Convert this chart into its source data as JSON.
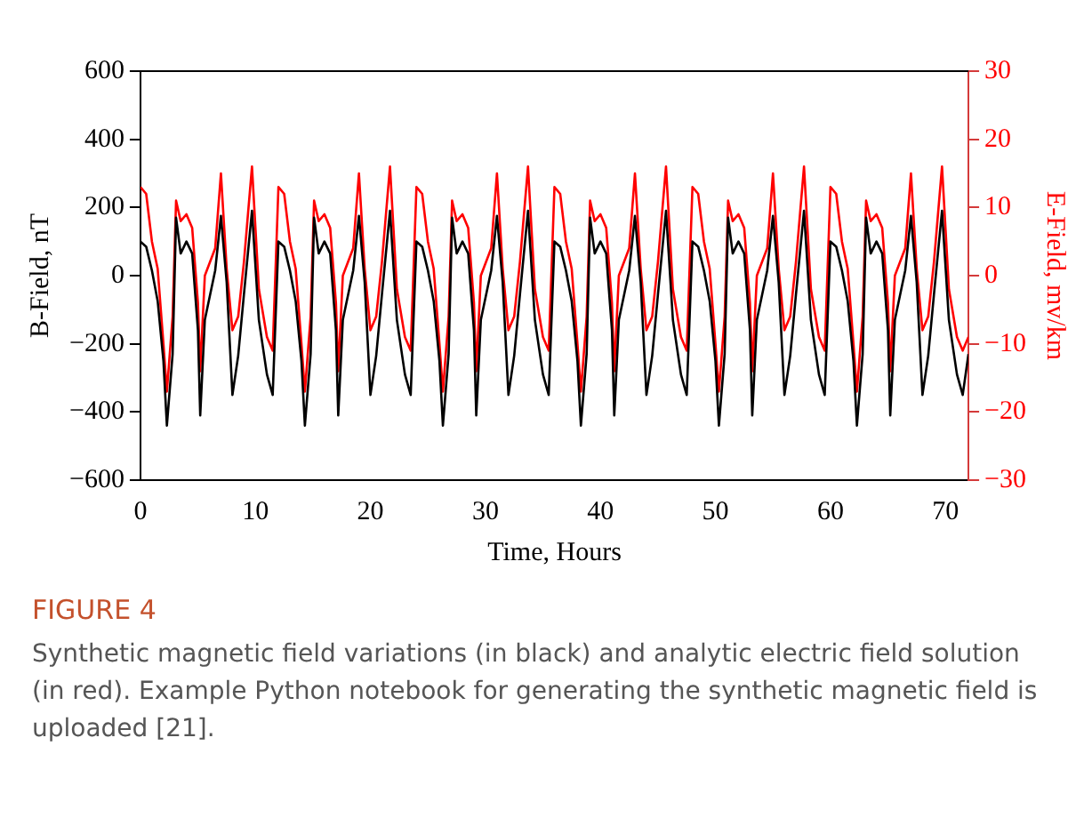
{
  "chart_data": {
    "type": "line",
    "xlabel": "Time, Hours",
    "ylabel": "B-Field, nT",
    "y2label": "E-Field, mv/km",
    "x": [
      0,
      0.5,
      1,
      1.5,
      2,
      2.3,
      2.8,
      3.1,
      3.5,
      4,
      4.5,
      5,
      5.2,
      5.6,
      6.5,
      7,
      7.5,
      8,
      8.5,
      9,
      9.7,
      10.3,
      11,
      11.5,
      12,
      12.5,
      13,
      13.5,
      14,
      14.3,
      14.8,
      15.1,
      15.5,
      16,
      16.5,
      17,
      17.2,
      17.6,
      18.5,
      19,
      19.5,
      20,
      20.5,
      21,
      21.7,
      22.3,
      23,
      23.5,
      24,
      24.5,
      25,
      25.5,
      26,
      26.3,
      26.8,
      27.1,
      27.5,
      28,
      28.5,
      29,
      29.2,
      29.6,
      30.5,
      31,
      31.5,
      32,
      32.5,
      33,
      33.7,
      34.3,
      35,
      35.5,
      36,
      36.5,
      37,
      37.5,
      38,
      38.3,
      38.8,
      39.1,
      39.5,
      40,
      40.5,
      41,
      41.2,
      41.6,
      42.5,
      43,
      43.5,
      44,
      44.5,
      45,
      45.7,
      46.3,
      47,
      47.5,
      48,
      48.5,
      49,
      49.5,
      50,
      50.3,
      50.8,
      51.1,
      51.5,
      52,
      52.5,
      53,
      53.2,
      53.6,
      54.5,
      55,
      55.5,
      56,
      56.5,
      57,
      57.7,
      58.3,
      59,
      59.5,
      60,
      60.5,
      61,
      61.5,
      62,
      62.3,
      62.8,
      63.1,
      63.5,
      64,
      64.5,
      65,
      65.2,
      65.6,
      66.5,
      67,
      67.5,
      68,
      68.5,
      69,
      69.7,
      70.3,
      71,
      71.5,
      72
    ],
    "series": [
      {
        "color": "#000000",
        "values": [
          100,
          85,
          15,
          -75,
          -250,
          -440,
          -230,
          170,
          65,
          100,
          65,
          -160,
          -410,
          -130,
          15,
          175,
          -20,
          -350,
          -235,
          -55,
          190,
          -130,
          -290,
          -350,
          100,
          85,
          15,
          -75,
          -250,
          -440,
          -230,
          170,
          65,
          100,
          65,
          -160,
          -410,
          -130,
          15,
          175,
          -20,
          -350,
          -235,
          -55,
          190,
          -130,
          -290,
          -350,
          100,
          85,
          15,
          -75,
          -250,
          -440,
          -230,
          170,
          65,
          100,
          65,
          -160,
          -410,
          -130,
          15,
          175,
          -20,
          -350,
          -235,
          -55,
          190,
          -130,
          -290,
          -350,
          100,
          85,
          15,
          -75,
          -250,
          -440,
          -230,
          170,
          65,
          100,
          65,
          -160,
          -410,
          -130,
          15,
          175,
          -20,
          -350,
          -235,
          -55,
          190,
          -130,
          -290,
          -350,
          100,
          85,
          15,
          -75,
          -250,
          -440,
          -230,
          170,
          65,
          100,
          65,
          -160,
          -410,
          -130,
          15,
          175,
          -20,
          -350,
          -235,
          -55,
          190,
          -130,
          -290,
          -350,
          100,
          85,
          15,
          -75,
          -250,
          -440,
          -230,
          170,
          65,
          100,
          65,
          -160,
          -410,
          -130,
          15,
          175,
          -20,
          -350,
          -235,
          -55,
          190,
          -130,
          -290,
          -350,
          -230
        ]
      },
      {
        "color": "#ff0000",
        "axis": "y2",
        "values": [
          13,
          12,
          5,
          1,
          -10,
          -17,
          -6,
          11,
          8,
          9,
          7,
          -4,
          -14,
          0,
          4,
          15,
          1,
          -8,
          -6,
          2,
          16,
          -2,
          -9,
          -11,
          13,
          12,
          5,
          1,
          -10,
          -17,
          -6,
          11,
          8,
          9,
          7,
          -4,
          -14,
          0,
          4,
          15,
          1,
          -8,
          -6,
          2,
          16,
          -2,
          -9,
          -11,
          13,
          12,
          5,
          1,
          -10,
          -17,
          -6,
          11,
          8,
          9,
          7,
          -4,
          -14,
          0,
          4,
          15,
          1,
          -8,
          -6,
          2,
          16,
          -2,
          -9,
          -11,
          13,
          12,
          5,
          1,
          -10,
          -17,
          -6,
          11,
          8,
          9,
          7,
          -4,
          -14,
          0,
          4,
          15,
          1,
          -8,
          -6,
          2,
          16,
          -2,
          -9,
          -11,
          13,
          12,
          5,
          1,
          -10,
          -17,
          -6,
          11,
          8,
          9,
          7,
          -4,
          -14,
          0,
          4,
          15,
          1,
          -8,
          -6,
          2,
          16,
          -2,
          -9,
          -11,
          13,
          12,
          5,
          1,
          -10,
          -17,
          -6,
          11,
          8,
          9,
          7,
          -4,
          -14,
          0,
          4,
          15,
          1,
          -8,
          -6,
          2,
          16,
          -2,
          -9,
          -11,
          -9
        ]
      }
    ],
    "xlim": [
      0,
      72
    ],
    "xticks": [
      0,
      10,
      20,
      30,
      40,
      50,
      60,
      70
    ],
    "ylim": [
      -600,
      600
    ],
    "yticks": [
      -600,
      -400,
      -200,
      0,
      200,
      400,
      600
    ],
    "y2lim": [
      -30,
      30
    ],
    "y2ticks": [
      -30,
      -20,
      -10,
      0,
      10,
      20,
      30
    ],
    "grid": false,
    "legend": false,
    "marker": "none",
    "line_style": "solid",
    "annotations": [
      "FIGURE 4",
      "Synthetic magnetic field variations (in black) and analytic electric field solution (in red). Example Python notebook for generating the synthetic magnetic field is uploaded [21]."
    ]
  }
}
